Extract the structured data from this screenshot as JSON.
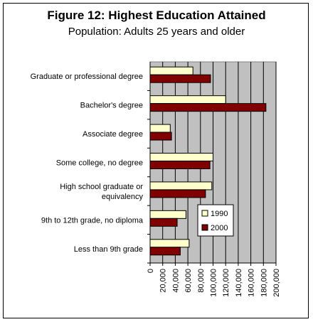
{
  "chart_data": {
    "type": "bar",
    "orientation": "horizontal",
    "title": "Figure 12: Highest Education Attained",
    "subtitle": "Population: Adults 25 years and older",
    "categories": [
      "Graduate or professional degree",
      "Bachelor's degree",
      "Associate degree",
      "Some college, no degree",
      [
        "High school graduate or",
        "equivalency"
      ],
      "9th to 12th grade, no diploma",
      "Less than 9th grade"
    ],
    "series": [
      {
        "name": "1990",
        "color": "#ffffcc",
        "values": [
          68000,
          120000,
          32000,
          100000,
          98000,
          57000,
          62000
        ]
      },
      {
        "name": "2000",
        "color": "#800000",
        "values": [
          96000,
          184000,
          34000,
          95000,
          88000,
          43000,
          48000
        ]
      }
    ],
    "xlim": [
      0,
      200000
    ],
    "xticks": [
      "0",
      "20,000",
      "40,000",
      "60,000",
      "80,000",
      "100,000",
      "120,000",
      "140,000",
      "160,000",
      "180,000",
      "200,000"
    ],
    "grid": true,
    "legend": "right",
    "plot_background": "#c0c0c0"
  }
}
